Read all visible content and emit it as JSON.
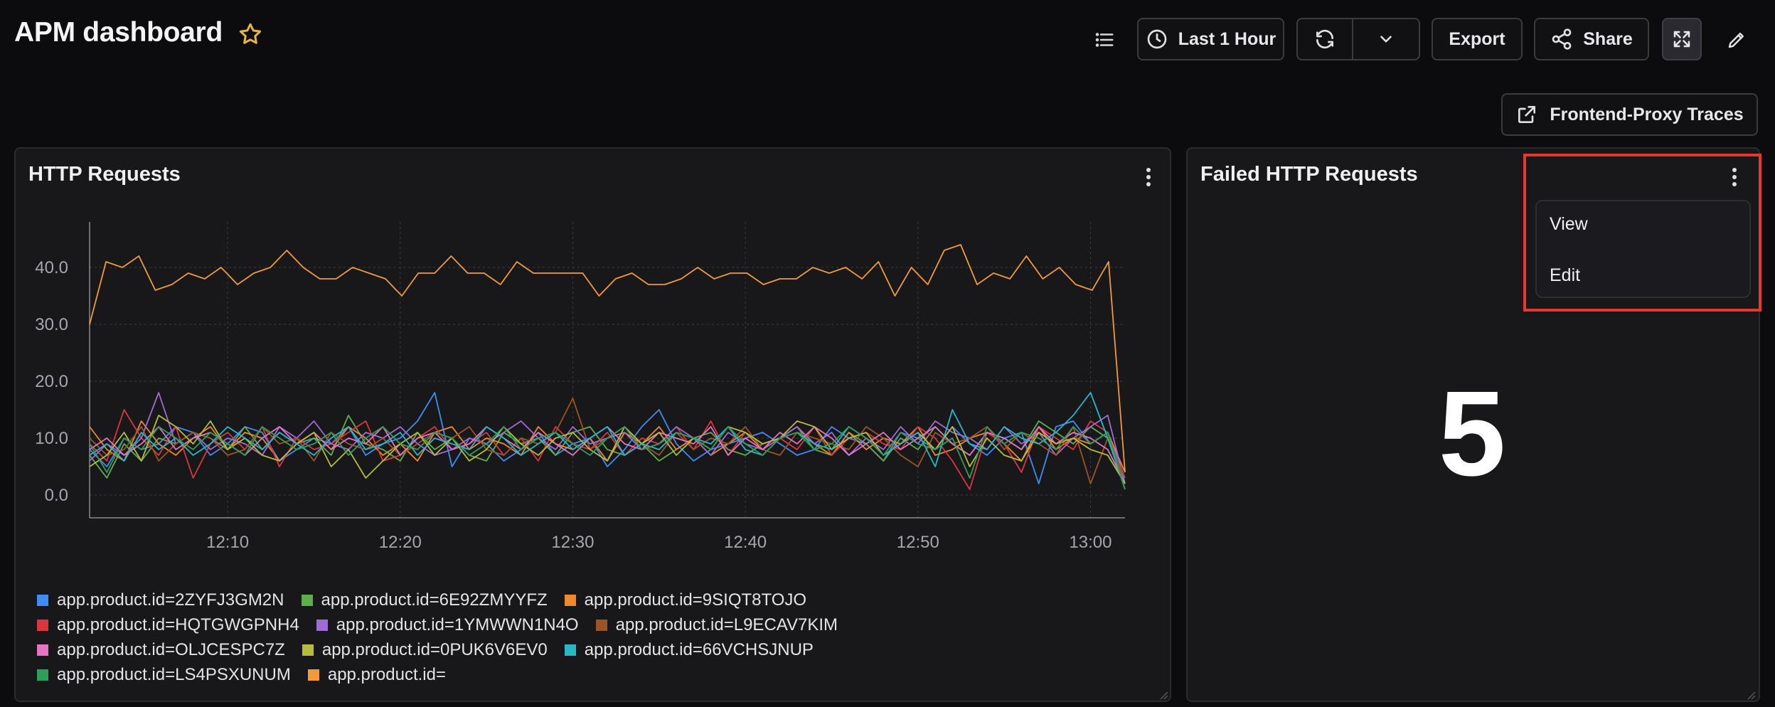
{
  "header": {
    "title": "APM dashboard",
    "time_range_label": "Last 1 Hour",
    "export_label": "Export",
    "share_label": "Share",
    "frontend_proxy_label": "Frontend-Proxy Traces"
  },
  "panels": {
    "http_requests": {
      "title": "HTTP Requests"
    },
    "failed_http_requests": {
      "title": "Failed HTTP Requests",
      "value": "5"
    }
  },
  "menu": {
    "items": [
      "View",
      "Edit"
    ]
  },
  "colors": {
    "background": "#0c0c0e",
    "panel": "#18181b",
    "highlight": "#e5392f"
  },
  "chart_data": {
    "type": "line",
    "title": "HTTP Requests",
    "xlabel": "",
    "ylabel": "",
    "yticks": [
      "0.0",
      "10.0",
      "20.0",
      "30.0",
      "40.0"
    ],
    "xticks": [
      "12:10",
      "12:20",
      "12:30",
      "12:40",
      "12:50",
      "13:00"
    ],
    "ylim": [
      -4,
      48
    ],
    "grid": true,
    "legend_position": "bottom",
    "x_start": "12:02",
    "x_end": "13:02",
    "series": [
      {
        "name": "app.product.id=2ZYFJ3GM2N",
        "color": "#3d8df5",
        "values": [
          8,
          5,
          10,
          8,
          9,
          12,
          11,
          7,
          9,
          12,
          11,
          6,
          8,
          10,
          9,
          12,
          7,
          9,
          10,
          13,
          18,
          5,
          10,
          9,
          6,
          8,
          11,
          7,
          9,
          10,
          5,
          8,
          12,
          15,
          9,
          6,
          8,
          9,
          10,
          11,
          9,
          7,
          8,
          12,
          10,
          9,
          6,
          11,
          10,
          8,
          12,
          9,
          7,
          10,
          11,
          2,
          12,
          13,
          9,
          11,
          3
        ]
      },
      {
        "name": "app.product.id=6E92ZMYYFZ",
        "color": "#5fae4e",
        "values": [
          7,
          3,
          9,
          6,
          10,
          9,
          11,
          10,
          8,
          12,
          8,
          11,
          9,
          10,
          7,
          14,
          9,
          8,
          6,
          11,
          8,
          10,
          7,
          6,
          11,
          9,
          10,
          7,
          11,
          12,
          8,
          7,
          9,
          6,
          8,
          10,
          11,
          8,
          7,
          9,
          10,
          12,
          8,
          7,
          11,
          9,
          6,
          10,
          8,
          12,
          9,
          7,
          11,
          10,
          8,
          13,
          11,
          9,
          12,
          10,
          2
        ]
      },
      {
        "name": "app.product.id=9SIQT8TOJO",
        "color": "#f0882e",
        "values": [
          12,
          8,
          6,
          13,
          9,
          7,
          10,
          12,
          8,
          11,
          10,
          6,
          9,
          11,
          8,
          12,
          10,
          7,
          9,
          6,
          11,
          12,
          8,
          10,
          9,
          7,
          12,
          9,
          8,
          10,
          6,
          11,
          9,
          12,
          8,
          10,
          7,
          9,
          11,
          8,
          10,
          12,
          9,
          7,
          11,
          8,
          10,
          9,
          12,
          7,
          8,
          10,
          11,
          9,
          6,
          12,
          8,
          10,
          9,
          11,
          4
        ]
      },
      {
        "name": "app.product.id=HQTGWGPNH4",
        "color": "#d9363e",
        "values": [
          9,
          6,
          15,
          10,
          7,
          12,
          3,
          9,
          11,
          8,
          12,
          5,
          10,
          8,
          9,
          11,
          13,
          6,
          7,
          10,
          12,
          8,
          9,
          11,
          7,
          10,
          6,
          12,
          9,
          8,
          11,
          7,
          10,
          9,
          12,
          8,
          13,
          7,
          11,
          9,
          10,
          8,
          12,
          7,
          10,
          11,
          9,
          8,
          12,
          10,
          6,
          1,
          11,
          9,
          4,
          12,
          10,
          8,
          13,
          11,
          2
        ]
      },
      {
        "name": "app.product.id=1YMWWN1N4O",
        "color": "#a26ad4",
        "values": [
          6,
          9,
          7,
          10,
          18,
          9,
          11,
          8,
          10,
          9,
          7,
          12,
          10,
          13,
          9,
          8,
          11,
          10,
          12,
          9,
          7,
          8,
          10,
          9,
          11,
          13,
          10,
          8,
          12,
          9,
          10,
          11,
          8,
          9,
          12,
          10,
          7,
          11,
          9,
          8,
          10,
          12,
          9,
          11,
          7,
          10,
          8,
          12,
          9,
          13,
          11,
          10,
          8,
          12,
          9,
          11,
          7,
          10,
          12,
          14,
          2
        ]
      },
      {
        "name": "app.product.id=L9ECAV7KIM",
        "color": "#9b5524",
        "values": [
          10,
          7,
          8,
          12,
          6,
          9,
          11,
          10,
          7,
          8,
          12,
          9,
          10,
          6,
          11,
          9,
          8,
          10,
          7,
          9,
          11,
          10,
          12,
          8,
          7,
          10,
          9,
          11,
          17,
          8,
          10,
          12,
          9,
          7,
          11,
          8,
          10,
          9,
          12,
          8,
          7,
          11,
          10,
          9,
          8,
          12,
          10,
          7,
          5,
          11,
          9,
          10,
          12,
          8,
          11,
          9,
          7,
          12,
          2,
          10,
          3
        ]
      },
      {
        "name": "app.product.id=OLJCESPC7Z",
        "color": "#e375c2",
        "values": [
          8,
          10,
          7,
          9,
          12,
          8,
          10,
          11,
          9,
          7,
          10,
          12,
          9,
          11,
          8,
          10,
          9,
          12,
          7,
          10,
          11,
          8,
          9,
          12,
          10,
          8,
          11,
          9,
          7,
          10,
          12,
          9,
          8,
          11,
          10,
          9,
          12,
          7,
          10,
          8,
          11,
          9,
          12,
          10,
          7,
          9,
          11,
          8,
          10,
          12,
          9,
          7,
          11,
          10,
          8,
          12,
          9,
          11,
          10,
          8,
          2
        ]
      },
      {
        "name": "app.product.id=0PUK6V6EV0",
        "color": "#b5bd3a",
        "values": [
          5,
          7,
          11,
          6,
          14,
          12,
          9,
          13,
          8,
          10,
          7,
          6,
          9,
          11,
          5,
          8,
          3,
          6,
          9,
          11,
          7,
          10,
          6,
          8,
          12,
          9,
          7,
          10,
          11,
          8,
          6,
          12,
          9,
          11,
          7,
          10,
          8,
          12,
          11,
          9,
          10,
          13,
          12,
          8,
          10,
          11,
          7,
          9,
          11,
          8,
          12,
          5,
          10,
          7,
          6,
          11,
          9,
          10,
          8,
          7,
          2
        ]
      },
      {
        "name": "app.product.id=66VCHSJNUP",
        "color": "#26b8c9",
        "values": [
          7,
          9,
          6,
          11,
          8,
          10,
          7,
          9,
          12,
          10,
          8,
          11,
          9,
          7,
          10,
          12,
          8,
          9,
          11,
          7,
          10,
          9,
          8,
          12,
          10,
          7,
          9,
          11,
          8,
          10,
          12,
          7,
          9,
          8,
          11,
          10,
          9,
          12,
          8,
          7,
          10,
          11,
          9,
          8,
          12,
          10,
          7,
          9,
          11,
          5,
          15,
          9,
          8,
          12,
          10,
          9,
          11,
          14,
          18,
          10,
          1
        ]
      },
      {
        "name": "app.product.id=LS4PSXUNUM",
        "color": "#2e9e58",
        "values": [
          9,
          4,
          10,
          8,
          12,
          10,
          8,
          11,
          9,
          7,
          12,
          10,
          8,
          9,
          11,
          7,
          10,
          12,
          9,
          8,
          11,
          10,
          7,
          9,
          12,
          8,
          10,
          11,
          9,
          7,
          10,
          12,
          8,
          9,
          11,
          10,
          8,
          12,
          9,
          7,
          10,
          11,
          8,
          9,
          12,
          10,
          7,
          11,
          9,
          8,
          10,
          3,
          12,
          9,
          11,
          10,
          8,
          12,
          9,
          11,
          1
        ]
      },
      {
        "name": "app.product.id=",
        "color": "#f29a3a",
        "values": [
          30,
          41,
          40,
          42,
          36,
          37,
          39,
          38,
          40,
          37,
          39,
          40,
          43,
          40,
          38,
          38,
          40,
          39,
          38,
          35,
          39,
          39,
          42,
          39,
          39,
          37,
          41,
          39,
          39,
          39,
          39,
          35,
          38,
          39,
          37,
          37,
          38,
          40,
          38,
          39,
          39,
          37,
          38,
          38,
          40,
          39,
          40,
          38,
          41,
          35,
          40,
          37,
          43,
          44,
          37,
          39,
          38,
          42,
          38,
          40,
          37,
          36,
          41,
          4
        ]
      }
    ]
  }
}
